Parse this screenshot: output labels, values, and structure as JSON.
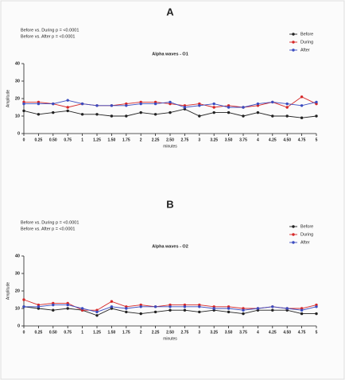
{
  "chart_data": [
    {
      "type": "line",
      "panel_label": "A",
      "title": "Alpha waves - O1",
      "annotations": [
        "Before vs. During p = <0.0001",
        "Before vs. After p = <0.0001"
      ],
      "y_label": "Amplitude",
      "x_label": "minutes",
      "x": [
        0,
        0.25,
        0.5,
        0.75,
        1,
        1.25,
        1.5,
        1.75,
        2,
        2.25,
        2.5,
        2.75,
        3,
        3.25,
        3.5,
        3.75,
        4,
        4.25,
        4.5,
        4.75,
        5
      ],
      "xlim": [
        0,
        5
      ],
      "xticks": [
        0,
        {
          "value": 0.25,
          "label": "0.25"
        },
        {
          "value": 0.5,
          "label": "0.50"
        },
        {
          "value": 0.75,
          "label": "0.75"
        },
        1,
        {
          "value": 1.25,
          "label": "1.25"
        },
        {
          "value": 1.5,
          "label": "1.50"
        },
        {
          "value": 1.75,
          "label": "1.75"
        },
        2,
        {
          "value": 2.25,
          "label": "2.25"
        },
        {
          "value": 2.5,
          "label": "2.50"
        },
        {
          "value": 2.75,
          "label": "2.75"
        },
        3,
        {
          "value": 3.25,
          "label": "3.25"
        },
        {
          "value": 3.5,
          "label": "3.50"
        },
        {
          "value": 3.75,
          "label": "3.75"
        },
        4,
        {
          "value": 4.25,
          "label": "4.25"
        },
        {
          "value": 4.5,
          "label": "4.50"
        },
        {
          "value": 4.75,
          "label": "4.75"
        },
        5
      ],
      "ylim": [
        0,
        40
      ],
      "yticks": [
        0,
        10,
        20,
        30,
        40
      ],
      "series": [
        {
          "name": "Before",
          "color": "#222222",
          "values": [
            13,
            11,
            12,
            13,
            11,
            11,
            10,
            10,
            12,
            11,
            12,
            14,
            10,
            12,
            12,
            10,
            12,
            10,
            10,
            9,
            10
          ]
        },
        {
          "name": "During",
          "color": "#d62728",
          "values": [
            18,
            18,
            17,
            15,
            17,
            16,
            16,
            17,
            18,
            18,
            17,
            16,
            17,
            15,
            16,
            15,
            16,
            18,
            15,
            21,
            17
          ]
        },
        {
          "name": "After",
          "color": "#3b4cc0",
          "values": [
            17,
            17,
            17,
            19,
            17,
            16,
            16,
            16,
            17,
            17,
            18,
            15,
            16,
            17,
            15,
            15,
            17,
            18,
            17,
            16,
            18
          ]
        }
      ]
    },
    {
      "type": "line",
      "panel_label": "B",
      "title": "Alpha waves - O2",
      "annotations": [
        "Before vs. During p = <0.0001",
        "Before vs. After p = <0.0001"
      ],
      "y_label": "Amplitude",
      "x_label": "minutes",
      "x": [
        0,
        0.25,
        0.5,
        0.75,
        1,
        1.25,
        1.5,
        1.75,
        2,
        2.25,
        2.5,
        2.75,
        3,
        3.25,
        3.5,
        3.75,
        4,
        4.25,
        4.5,
        4.75,
        5
      ],
      "xlim": [
        0,
        5
      ],
      "xticks": [
        0,
        {
          "value": 0.25,
          "label": "0.25"
        },
        {
          "value": 0.5,
          "label": "0.50"
        },
        {
          "value": 0.75,
          "label": "0.75"
        },
        1,
        {
          "value": 1.25,
          "label": "1.25"
        },
        {
          "value": 1.5,
          "label": "1.50"
        },
        {
          "value": 1.75,
          "label": "1.75"
        },
        2,
        {
          "value": 2.25,
          "label": "2.25"
        },
        {
          "value": 2.5,
          "label": "2.50"
        },
        {
          "value": 2.75,
          "label": "2.75"
        },
        3,
        {
          "value": 3.25,
          "label": "3.25"
        },
        {
          "value": 3.5,
          "label": "3.50"
        },
        {
          "value": 3.75,
          "label": "3.75"
        },
        4,
        {
          "value": 4.25,
          "label": "4.25"
        },
        {
          "value": 4.5,
          "label": "4.50"
        },
        {
          "value": 4.75,
          "label": "4.75"
        },
        5
      ],
      "ylim": [
        0,
        40
      ],
      "yticks": [
        0,
        10,
        20,
        30,
        40
      ],
      "series": [
        {
          "name": "Before",
          "color": "#222222",
          "values": [
            11,
            10,
            9,
            10,
            9,
            6,
            10,
            8,
            7,
            8,
            9,
            9,
            8,
            9,
            8,
            7,
            9,
            9,
            9,
            7,
            7
          ]
        },
        {
          "name": "During",
          "color": "#d62728",
          "values": [
            15,
            12,
            13,
            13,
            9,
            9,
            14,
            11,
            12,
            11,
            12,
            12,
            12,
            11,
            11,
            10,
            10,
            11,
            10,
            10,
            12
          ]
        },
        {
          "name": "After",
          "color": "#3b4cc0",
          "values": [
            11,
            11,
            12,
            12,
            10,
            8,
            11,
            10,
            11,
            11,
            11,
            11,
            11,
            10,
            10,
            9,
            10,
            11,
            10,
            9,
            11
          ]
        }
      ]
    }
  ]
}
